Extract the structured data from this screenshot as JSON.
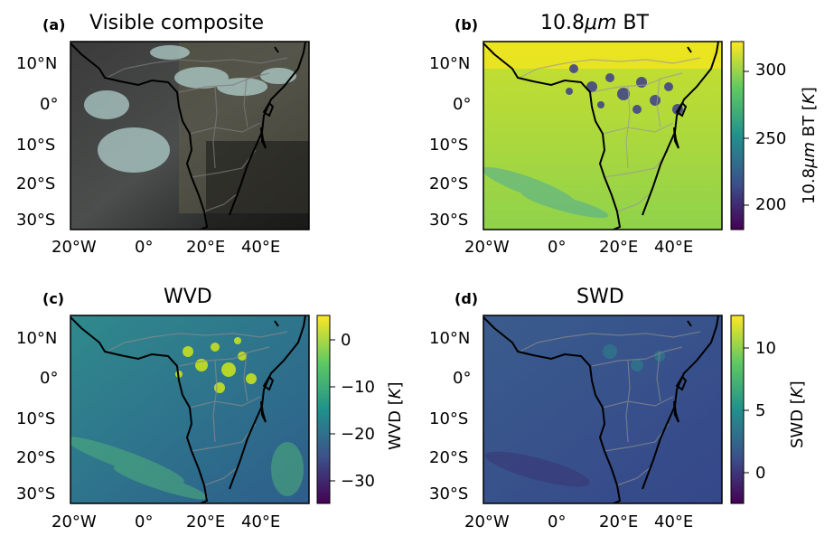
{
  "panels": [
    {
      "tag": "(a)",
      "title": "Visible composite",
      "colorbar": null
    },
    {
      "tag": "(b)",
      "title": "10.8μm BT",
      "colorbar": {
        "label": "10.8μm BT [K]",
        "ticks": [
          "300",
          "250",
          "200"
        ]
      }
    },
    {
      "tag": "(c)",
      "title": "WVD",
      "colorbar": {
        "label": "WVD [K]",
        "ticks": [
          "0",
          "−10",
          "−20",
          "−30"
        ]
      }
    },
    {
      "tag": "(d)",
      "title": "SWD",
      "colorbar": {
        "label": "SWD [K]",
        "ticks": [
          "10",
          "5",
          "0"
        ]
      }
    }
  ],
  "axes": {
    "lat_ticks": [
      "10°N",
      "0°",
      "10°S",
      "20°S",
      "30°S"
    ],
    "lon_ticks": [
      "20°W",
      "0°",
      "20°E",
      "40°E"
    ]
  },
  "colormaps": {
    "viridis": [
      "#440154",
      "#3b528b",
      "#21918c",
      "#5ec962",
      "#fde725"
    ],
    "visible": [
      "#2a2a2a",
      "#5a5a55",
      "#8fa6a0"
    ]
  }
}
